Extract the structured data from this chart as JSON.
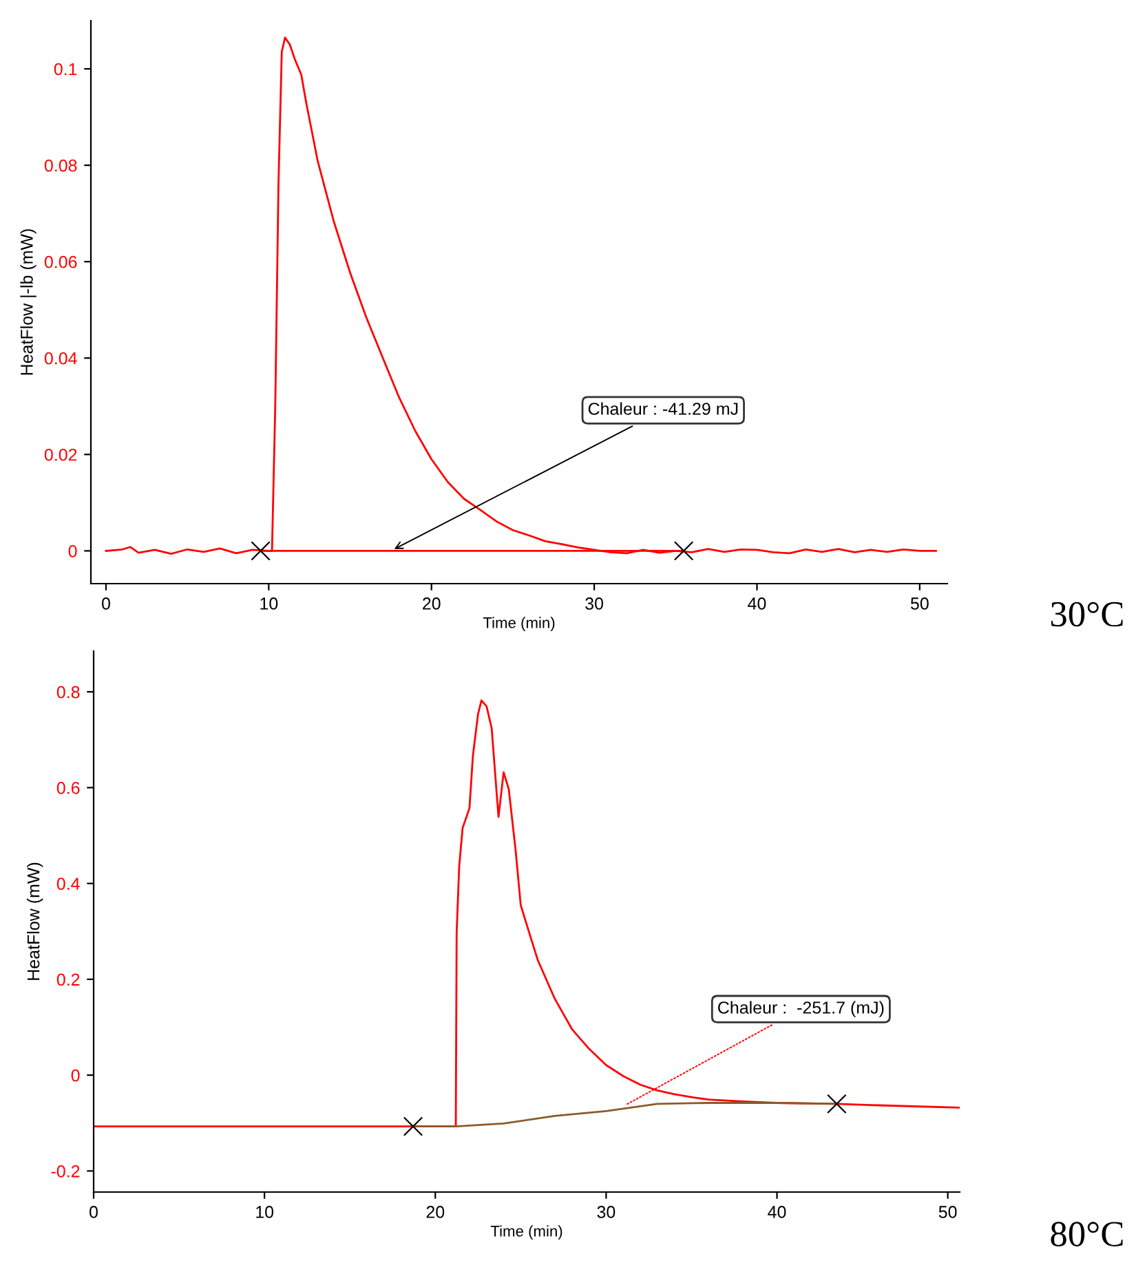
{
  "chart_data": [
    {
      "type": "line",
      "xlabel": "Time (min)",
      "ylabel": "HeatFlow |-lb (mW)",
      "xlim": [
        -0.93,
        51.7
      ],
      "ylim": [
        -0.0068,
        0.11
      ],
      "xticks": [
        0,
        10,
        20,
        30,
        40,
        50
      ],
      "yticks": [
        0,
        0.02,
        0.04,
        0.06,
        0.08,
        {
          "value": 0.1,
          "label": "0.1"
        }
      ],
      "grid": false,
      "legend": false,
      "series": [
        {
          "color": "#ff0000",
          "x": [
            0,
            1,
            1.5,
            2,
            3,
            4,
            5,
            6,
            7,
            8,
            9,
            10,
            10.2,
            10.4,
            10.6,
            10.8,
            11.0,
            11.3,
            11.6,
            12.0,
            12.3,
            13,
            14,
            15,
            16,
            17,
            18,
            19,
            20,
            21,
            22,
            23,
            24,
            25,
            26,
            27,
            28,
            29,
            30,
            31,
            32,
            33,
            34,
            35,
            36,
            37,
            38,
            39,
            40,
            41,
            42,
            43,
            44,
            45,
            46,
            47,
            48,
            49,
            50,
            51
          ],
          "values": [
            0,
            0.0003,
            0.0008,
            -0.0004,
            0.0002,
            -0.0006,
            0.0003,
            -0.0002,
            0.0005,
            -0.0005,
            0.0002,
            0,
            0,
            0.03,
            0.0765,
            0.1035,
            0.1065,
            0.105,
            0.102,
            0.0988,
            0.093,
            0.081,
            0.0683,
            0.0577,
            0.0484,
            0.0401,
            0.0319,
            0.0249,
            0.019,
            0.0143,
            0.0108,
            0.0085,
            0.0061,
            0.0043,
            0.0032,
            0.002,
            0.0014,
            0.0007,
            0.0002,
            -0.0003,
            -0.0005,
            0.0002,
            -0.0004,
            0,
            -0.0003,
            0.0004,
            -0.0002,
            0.0003,
            0.0002,
            -0.0003,
            -0.0005,
            0.0003,
            -0.0002,
            0.0004,
            -0.0003,
            0.0002,
            -0.0002,
            0.0003,
            0,
            0
          ]
        },
        {
          "color": "#ff0000",
          "x": [
            9.5,
            35.5
          ],
          "values": [
            0,
            0
          ]
        },
        {
          "type": "scatter",
          "color": "#000000",
          "marker": "cross",
          "x": [
            9.5,
            35.5
          ],
          "values": [
            0,
            0
          ]
        }
      ],
      "annotations": [
        {
          "text": "Chaleur : -41.29 mJ",
          "x": 17.5,
          "y": 0
        },
        "30°C"
      ]
    },
    {
      "type": "line",
      "xlabel": "Time (min)",
      "ylabel": "HeatFlow (mW)",
      "xlim": [
        0,
        50.7
      ],
      "ylim": [
        -0.244,
        0.885
      ],
      "xticks": [
        0,
        10,
        20,
        30,
        40,
        50
      ],
      "yticks": [
        -0.2,
        0,
        0.2,
        0.4,
        0.6,
        0.8
      ],
      "grid": false,
      "legend": false,
      "series": [
        {
          "color": "#ff0000",
          "x": [
            0,
            21.2,
            21.25,
            21.4,
            21.6,
            22.0,
            22.2,
            22.5,
            22.7,
            23.0,
            23.3,
            23.7,
            24.0,
            24.3,
            24.7,
            25,
            25.5,
            26,
            27,
            28,
            29,
            30,
            31,
            32,
            33,
            34,
            35,
            36,
            38,
            40,
            43.5,
            46,
            50.7
          ],
          "values": [
            -0.107,
            -0.107,
            0.297,
            0.436,
            0.516,
            0.557,
            0.666,
            0.753,
            0.782,
            0.77,
            0.724,
            0.539,
            0.632,
            0.597,
            0.47,
            0.355,
            0.297,
            0.24,
            0.159,
            0.096,
            0.055,
            0.021,
            -0.002,
            -0.02,
            -0.032,
            -0.04,
            -0.046,
            -0.051,
            -0.055,
            -0.058,
            -0.06,
            -0.063,
            -0.068
          ]
        },
        {
          "color": "#8b5a2b",
          "x": [
            18.7,
            21.2,
            24,
            27,
            30,
            33,
            36,
            40,
            43.5
          ],
          "values": [
            -0.107,
            -0.107,
            -0.101,
            -0.085,
            -0.075,
            -0.06,
            -0.058,
            -0.058,
            -0.06
          ]
        },
        {
          "type": "scatter",
          "color": "#000000",
          "marker": "cross",
          "x": [
            18.7,
            43.5
          ],
          "values": [
            -0.107,
            -0.06
          ]
        }
      ],
      "annotations": [
        {
          "text": "Chaleur :  -251.7 (mJ)",
          "x": 31,
          "y": -0.065
        },
        "80°C"
      ]
    }
  ]
}
